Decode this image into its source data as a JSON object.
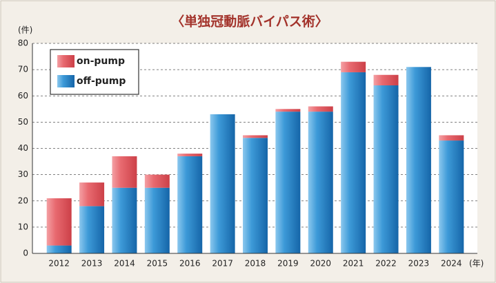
{
  "chart_data": {
    "type": "bar",
    "stacked": true,
    "title": "〈単独冠動脈バイパス術〉",
    "y_label": "(件)",
    "x_label": "(年)",
    "categories": [
      "2012",
      "2013",
      "2014",
      "2015",
      "2016",
      "2017",
      "2018",
      "2019",
      "2020",
      "2021",
      "2022",
      "2023",
      "2024"
    ],
    "series": [
      {
        "name": "off-pump",
        "color": "#1f7cc4",
        "values": [
          3,
          18,
          25,
          25,
          37,
          53,
          44,
          54,
          54,
          69,
          64,
          71,
          43
        ]
      },
      {
        "name": "on-pump",
        "color": "#e0585f",
        "values": [
          18,
          9,
          12,
          5,
          1,
          0,
          1,
          1,
          2,
          4,
          4,
          0,
          2
        ]
      }
    ],
    "ylim": [
      0,
      80
    ],
    "yticks": [
      0,
      10,
      20,
      30,
      40,
      50,
      60,
      70,
      80
    ],
    "grid": true,
    "legend": "upper left"
  }
}
